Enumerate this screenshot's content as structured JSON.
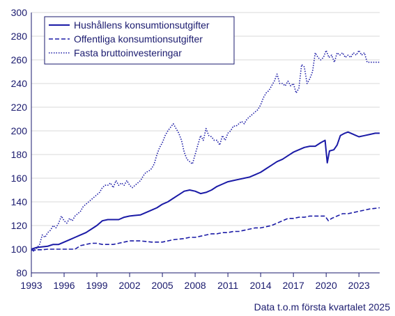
{
  "chart_data": {
    "type": "line",
    "title": "",
    "xlabel": "",
    "ylabel": "",
    "xlim": [
      1993,
      2024.9
    ],
    "ylim": [
      80,
      300
    ],
    "x_ticks": [
      "1993",
      "1996",
      "1999",
      "2002",
      "2005",
      "2008",
      "2011",
      "2014",
      "2017",
      "2020",
      "2023"
    ],
    "y_ticks": [
      "80",
      "100",
      "120",
      "140",
      "160",
      "180",
      "200",
      "220",
      "240",
      "260",
      "280",
      "300"
    ],
    "grid": "horizontal",
    "legend_position": "top-left",
    "footnote": "Data t.o.m första kvartalet 2025",
    "series": [
      {
        "name": "Hushållens konsumtionsutgifter",
        "style": "solid",
        "color": "#1a1aa6",
        "points": [
          [
            1993,
            100
          ],
          [
            1993.5,
            101.5
          ],
          [
            1994,
            102
          ],
          [
            1994.5,
            102.5
          ],
          [
            1995,
            104
          ],
          [
            1995.5,
            104
          ],
          [
            1996,
            106
          ],
          [
            1996.5,
            108
          ],
          [
            1997,
            110
          ],
          [
            1997.5,
            112
          ],
          [
            1998,
            114
          ],
          [
            1998.5,
            117
          ],
          [
            1999,
            120
          ],
          [
            1999.5,
            124
          ],
          [
            2000,
            125
          ],
          [
            2000.5,
            125
          ],
          [
            2001,
            125
          ],
          [
            2001.5,
            127
          ],
          [
            2002,
            128
          ],
          [
            2002.5,
            128.5
          ],
          [
            2003,
            129
          ],
          [
            2003.5,
            131
          ],
          [
            2004,
            133
          ],
          [
            2004.5,
            135
          ],
          [
            2005,
            138
          ],
          [
            2005.5,
            140
          ],
          [
            2006,
            143
          ],
          [
            2006.5,
            146
          ],
          [
            2007,
            149
          ],
          [
            2007.5,
            150
          ],
          [
            2008,
            149
          ],
          [
            2008.5,
            147
          ],
          [
            2009,
            148
          ],
          [
            2009.5,
            150
          ],
          [
            2010,
            153
          ],
          [
            2010.5,
            155
          ],
          [
            2011,
            157
          ],
          [
            2011.5,
            158
          ],
          [
            2012,
            159
          ],
          [
            2012.5,
            160
          ],
          [
            2013,
            161
          ],
          [
            2013.5,
            163
          ],
          [
            2014,
            165
          ],
          [
            2014.5,
            168
          ],
          [
            2015,
            171
          ],
          [
            2015.5,
            174
          ],
          [
            2016,
            176
          ],
          [
            2016.5,
            179
          ],
          [
            2017,
            182
          ],
          [
            2017.5,
            184
          ],
          [
            2018,
            186
          ],
          [
            2018.5,
            187
          ],
          [
            2019,
            187
          ],
          [
            2019.5,
            190
          ],
          [
            2019.9,
            192
          ],
          [
            2020.1,
            173
          ],
          [
            2020.3,
            183
          ],
          [
            2020.7,
            184
          ],
          [
            2021,
            188
          ],
          [
            2021.3,
            196
          ],
          [
            2021.7,
            198
          ],
          [
            2022,
            199
          ],
          [
            2022.5,
            197
          ],
          [
            2023,
            195
          ],
          [
            2023.5,
            196
          ],
          [
            2024,
            197
          ],
          [
            2024.5,
            198
          ],
          [
            2024.9,
            198
          ]
        ]
      },
      {
        "name": "Offentliga konsumtionsutgifter",
        "style": "dashed",
        "color": "#1a1aa6",
        "points": [
          [
            1993,
            99
          ],
          [
            1993.5,
            99.5
          ],
          [
            1994,
            99.5
          ],
          [
            1994.5,
            100
          ],
          [
            1995,
            100
          ],
          [
            1995.5,
            100
          ],
          [
            1996,
            100
          ],
          [
            1996.5,
            100
          ],
          [
            1997,
            100
          ],
          [
            1997.5,
            103
          ],
          [
            1998,
            104
          ],
          [
            1998.5,
            105
          ],
          [
            1999,
            105
          ],
          [
            1999.5,
            104
          ],
          [
            2000,
            104
          ],
          [
            2000.5,
            104
          ],
          [
            2001,
            105
          ],
          [
            2001.5,
            106
          ],
          [
            2002,
            107
          ],
          [
            2002.5,
            107
          ],
          [
            2003,
            107
          ],
          [
            2003.5,
            106.5
          ],
          [
            2004,
            106
          ],
          [
            2004.5,
            106
          ],
          [
            2005,
            106
          ],
          [
            2005.5,
            107
          ],
          [
            2006,
            108
          ],
          [
            2006.5,
            108.5
          ],
          [
            2007,
            109
          ],
          [
            2007.5,
            110
          ],
          [
            2008,
            110
          ],
          [
            2008.5,
            111
          ],
          [
            2009,
            112
          ],
          [
            2009.5,
            113
          ],
          [
            2010,
            113
          ],
          [
            2010.5,
            114
          ],
          [
            2011,
            114
          ],
          [
            2011.5,
            115
          ],
          [
            2012,
            115
          ],
          [
            2012.5,
            116
          ],
          [
            2013,
            117
          ],
          [
            2013.5,
            118
          ],
          [
            2014,
            118
          ],
          [
            2014.5,
            119
          ],
          [
            2015,
            120
          ],
          [
            2015.5,
            122
          ],
          [
            2016,
            124
          ],
          [
            2016.5,
            126
          ],
          [
            2017,
            126
          ],
          [
            2017.5,
            127
          ],
          [
            2018,
            127
          ],
          [
            2018.5,
            128
          ],
          [
            2019,
            128
          ],
          [
            2019.5,
            128
          ],
          [
            2019.9,
            128
          ],
          [
            2020.2,
            124
          ],
          [
            2020.5,
            126
          ],
          [
            2021,
            128
          ],
          [
            2021.5,
            130
          ],
          [
            2022,
            130
          ],
          [
            2022.5,
            131
          ],
          [
            2023,
            132
          ],
          [
            2023.5,
            133
          ],
          [
            2024,
            134
          ],
          [
            2024.5,
            134.5
          ],
          [
            2024.9,
            135
          ]
        ]
      },
      {
        "name": "Fasta bruttoinvesteringar",
        "style": "dotted",
        "color": "#1a1aa6",
        "points": [
          [
            1993,
            100
          ],
          [
            1993.25,
            98
          ],
          [
            1993.5,
            101
          ],
          [
            1993.75,
            104
          ],
          [
            1994,
            112
          ],
          [
            1994.25,
            110
          ],
          [
            1994.5,
            114
          ],
          [
            1994.75,
            116
          ],
          [
            1995,
            120
          ],
          [
            1995.25,
            118
          ],
          [
            1995.5,
            122
          ],
          [
            1995.75,
            128
          ],
          [
            1996,
            124
          ],
          [
            1996.25,
            122
          ],
          [
            1996.5,
            126
          ],
          [
            1996.75,
            124
          ],
          [
            1997,
            128
          ],
          [
            1997.25,
            130
          ],
          [
            1997.5,
            132
          ],
          [
            1997.75,
            136
          ],
          [
            1998,
            138
          ],
          [
            1998.25,
            140
          ],
          [
            1998.5,
            142
          ],
          [
            1998.75,
            144
          ],
          [
            1999,
            146
          ],
          [
            1999.25,
            148
          ],
          [
            1999.5,
            152
          ],
          [
            1999.75,
            154
          ],
          [
            2000,
            154
          ],
          [
            2000.25,
            156
          ],
          [
            2000.5,
            152
          ],
          [
            2000.75,
            158
          ],
          [
            2001,
            154
          ],
          [
            2001.25,
            156
          ],
          [
            2001.5,
            154
          ],
          [
            2001.75,
            158
          ],
          [
            2002,
            154
          ],
          [
            2002.25,
            152
          ],
          [
            2002.5,
            154
          ],
          [
            2002.75,
            156
          ],
          [
            2003,
            158
          ],
          [
            2003.25,
            162
          ],
          [
            2003.5,
            165
          ],
          [
            2003.75,
            166
          ],
          [
            2004,
            168
          ],
          [
            2004.25,
            172
          ],
          [
            2004.5,
            180
          ],
          [
            2004.75,
            186
          ],
          [
            2005,
            190
          ],
          [
            2005.25,
            196
          ],
          [
            2005.5,
            200
          ],
          [
            2005.75,
            203
          ],
          [
            2006,
            206
          ],
          [
            2006.25,
            202
          ],
          [
            2006.5,
            198
          ],
          [
            2006.75,
            192
          ],
          [
            2007,
            182
          ],
          [
            2007.25,
            176
          ],
          [
            2007.5,
            174
          ],
          [
            2007.75,
            172
          ],
          [
            2008,
            180
          ],
          [
            2008.25,
            188
          ],
          [
            2008.5,
            196
          ],
          [
            2008.75,
            192
          ],
          [
            2009,
            202
          ],
          [
            2009.25,
            196
          ],
          [
            2009.5,
            195
          ],
          [
            2009.75,
            192
          ],
          [
            2010,
            192
          ],
          [
            2010.25,
            188
          ],
          [
            2010.5,
            196
          ],
          [
            2010.75,
            192
          ],
          [
            2011,
            198
          ],
          [
            2011.25,
            200
          ],
          [
            2011.5,
            204
          ],
          [
            2011.75,
            204
          ],
          [
            2012,
            206
          ],
          [
            2012.25,
            208
          ],
          [
            2012.5,
            206
          ],
          [
            2012.75,
            210
          ],
          [
            2013,
            212
          ],
          [
            2013.25,
            214
          ],
          [
            2013.5,
            216
          ],
          [
            2013.75,
            218
          ],
          [
            2014,
            222
          ],
          [
            2014.25,
            228
          ],
          [
            2014.5,
            232
          ],
          [
            2014.75,
            234
          ],
          [
            2015,
            238
          ],
          [
            2015.25,
            242
          ],
          [
            2015.5,
            248
          ],
          [
            2015.75,
            240
          ],
          [
            2016,
            240
          ],
          [
            2016.25,
            238
          ],
          [
            2016.5,
            242
          ],
          [
            2016.75,
            238
          ],
          [
            2017,
            240
          ],
          [
            2017.25,
            232
          ],
          [
            2017.5,
            236
          ],
          [
            2017.75,
            256
          ],
          [
            2018,
            254
          ],
          [
            2018.25,
            240
          ],
          [
            2018.5,
            244
          ],
          [
            2018.75,
            250
          ],
          [
            2019,
            266
          ],
          [
            2019.25,
            262
          ],
          [
            2019.5,
            260
          ],
          [
            2019.75,
            262
          ],
          [
            2020,
            268
          ],
          [
            2020.25,
            262
          ],
          [
            2020.5,
            264
          ],
          [
            2020.75,
            258
          ],
          [
            2021,
            266
          ],
          [
            2021.25,
            264
          ],
          [
            2021.5,
            266
          ],
          [
            2021.75,
            262
          ],
          [
            2022,
            264
          ],
          [
            2022.25,
            262
          ],
          [
            2022.5,
            266
          ],
          [
            2022.75,
            264
          ],
          [
            2023,
            268
          ],
          [
            2023.25,
            264
          ],
          [
            2023.5,
            266
          ],
          [
            2023.75,
            258
          ],
          [
            2024,
            258
          ],
          [
            2024.9,
            258
          ]
        ]
      }
    ]
  }
}
